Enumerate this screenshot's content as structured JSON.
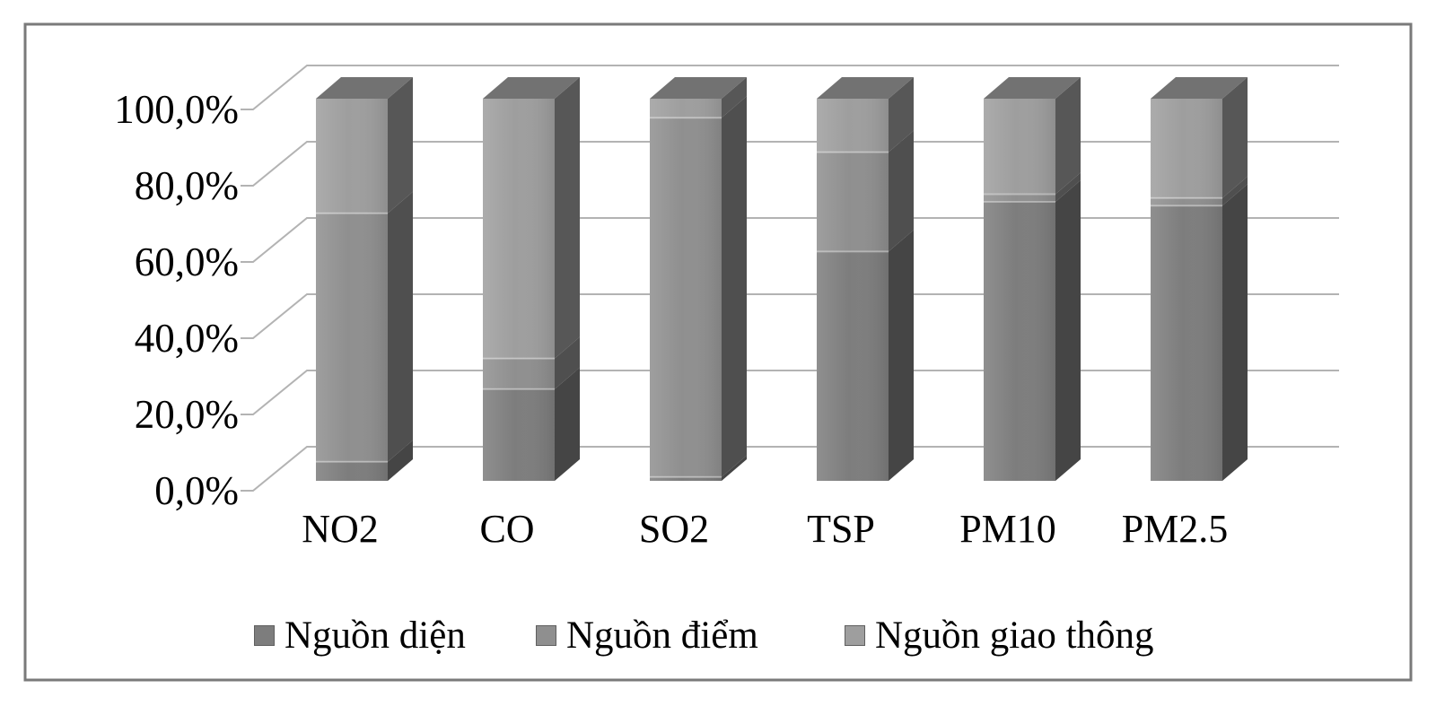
{
  "chart_data": {
    "type": "bar",
    "stacked": true,
    "stacked_100_percent": true,
    "effect": "3d-column",
    "title": "",
    "xlabel": "",
    "ylabel": "",
    "categories": [
      "NO2",
      "CO",
      "SO2",
      "TSP",
      "PM10",
      "PM2.5"
    ],
    "series": [
      {
        "name": "Nguồn diện",
        "color": "#7d7d7d",
        "values": [
          5,
          24,
          1,
          60,
          73,
          72
        ]
      },
      {
        "name": "Nguồn điểm",
        "color": "#8f8f8f",
        "values": [
          65,
          8,
          94,
          26,
          2,
          2
        ]
      },
      {
        "name": "Nguồn giao thông",
        "color": "#9e9e9e",
        "values": [
          30,
          68,
          5,
          14,
          25,
          26
        ]
      }
    ],
    "y_axis": {
      "min": 0,
      "max": 100,
      "unit": "%",
      "ticks": [
        "0,0%",
        "20,0%",
        "40,0%",
        "60,0%",
        "80,0%",
        "100,0%"
      ],
      "tick_values": [
        0,
        20,
        40,
        60,
        80,
        100
      ]
    },
    "legend": {
      "position": "bottom"
    },
    "grid": true,
    "colors": {
      "gridline": "#b3b3b3",
      "border": "#7a7a7a",
      "background": "#ffffff",
      "text": "#000000"
    }
  }
}
